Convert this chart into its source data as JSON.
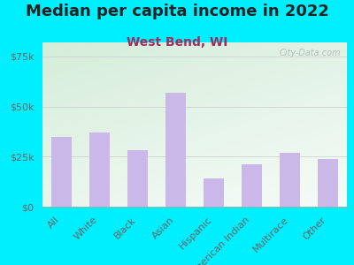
{
  "title": "Median per capita income in 2022",
  "subtitle": "West Bend, WI",
  "categories": [
    "All",
    "White",
    "Black",
    "Asian",
    "Hispanic",
    "American Indian",
    "Multirace",
    "Other"
  ],
  "values": [
    35000,
    37000,
    28000,
    57000,
    14000,
    21000,
    27000,
    24000
  ],
  "bar_color": "#c9b8e8",
  "background_outer": "#00efff",
  "title_color": "#222222",
  "subtitle_color": "#9b3060",
  "tick_label_color": "#666666",
  "ytick_labels": [
    "$0",
    "$25k",
    "$50k",
    "$75k"
  ],
  "ytick_values": [
    0,
    25000,
    50000,
    75000
  ],
  "ylim": [
    0,
    82000
  ],
  "watermark": "City-Data.com",
  "title_fontsize": 13,
  "subtitle_fontsize": 10,
  "tick_fontsize": 8
}
